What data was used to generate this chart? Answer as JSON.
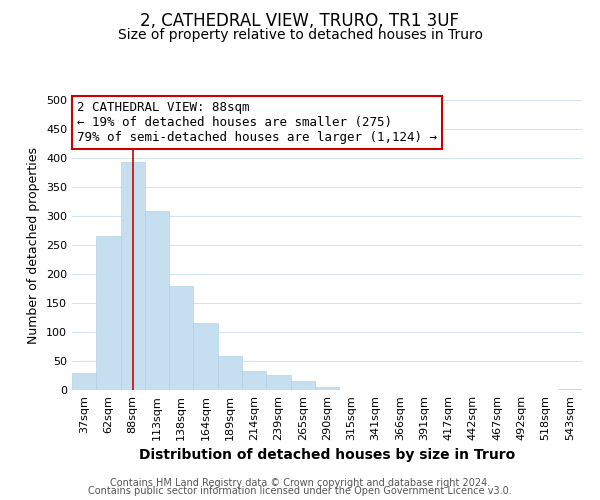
{
  "title": "2, CATHEDRAL VIEW, TRURO, TR1 3UF",
  "subtitle": "Size of property relative to detached houses in Truro",
  "xlabel": "Distribution of detached houses by size in Truro",
  "ylabel": "Number of detached properties",
  "bar_labels": [
    "37sqm",
    "62sqm",
    "88sqm",
    "113sqm",
    "138sqm",
    "164sqm",
    "189sqm",
    "214sqm",
    "239sqm",
    "265sqm",
    "290sqm",
    "315sqm",
    "341sqm",
    "366sqm",
    "391sqm",
    "417sqm",
    "442sqm",
    "467sqm",
    "492sqm",
    "518sqm",
    "543sqm"
  ],
  "bar_heights": [
    30,
    265,
    393,
    308,
    180,
    115,
    58,
    33,
    26,
    15,
    6,
    0,
    0,
    0,
    0,
    0,
    0,
    0,
    0,
    0,
    2
  ],
  "bar_color": "#c6dff0",
  "vline_color": "#cc0000",
  "vline_index": 2,
  "annotation_line1": "2 CATHEDRAL VIEW: 88sqm",
  "annotation_line2": "← 19% of detached houses are smaller (275)",
  "annotation_line3": "79% of semi-detached houses are larger (1,124) →",
  "annotation_box_facecolor": "#ffffff",
  "annotation_box_edgecolor": "#cc0000",
  "ylim": [
    0,
    500
  ],
  "yticks": [
    0,
    50,
    100,
    150,
    200,
    250,
    300,
    350,
    400,
    450,
    500
  ],
  "grid_color": "#d5e5f0",
  "footer_line1": "Contains HM Land Registry data © Crown copyright and database right 2024.",
  "footer_line2": "Contains public sector information licensed under the Open Government Licence v3.0.",
  "title_fontsize": 12,
  "subtitle_fontsize": 10,
  "xlabel_fontsize": 10,
  "ylabel_fontsize": 9,
  "tick_fontsize": 8,
  "annotation_fontsize": 9,
  "footer_fontsize": 7
}
